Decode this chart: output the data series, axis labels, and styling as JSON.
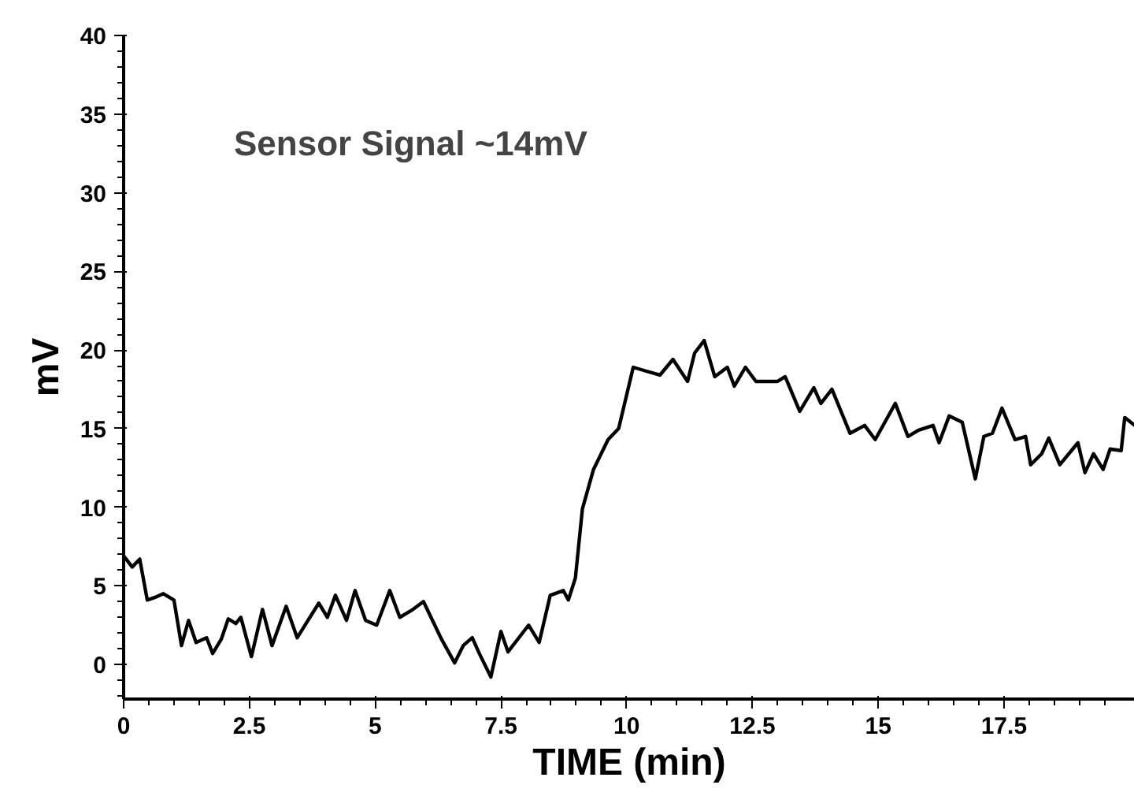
{
  "chart_data": {
    "type": "line",
    "xlabel": "TIME (min)",
    "ylabel": "mV",
    "annotations": [
      "Sensor Signal ~14mV"
    ],
    "xlim": [
      0,
      20.1
    ],
    "ylim": [
      -2.2,
      40
    ],
    "xticks": [
      0,
      2.5,
      5,
      7.5,
      10,
      12.5,
      15,
      17.5
    ],
    "yticks": [
      0,
      5,
      10,
      15,
      20,
      25,
      30,
      35,
      40
    ],
    "grid": false,
    "marker": "none",
    "line_style": "solid",
    "series": [
      {
        "color": "#000000",
        "x": [
          0,
          0.17,
          0.32,
          0.47,
          0.65,
          0.79,
          1.0,
          1.15,
          1.29,
          1.44,
          1.65,
          1.77,
          1.94,
          2.08,
          2.23,
          2.33,
          2.54,
          2.76,
          2.95,
          3.23,
          3.45,
          3.88,
          4.05,
          4.21,
          4.43,
          4.6,
          4.81,
          5.03,
          5.29,
          5.49,
          5.75,
          5.96,
          6.32,
          6.58,
          6.75,
          6.93,
          7.07,
          7.3,
          7.5,
          7.64,
          8.05,
          8.26,
          8.48,
          8.74,
          8.84,
          8.98,
          9.12,
          9.34,
          9.63,
          9.84,
          10.13,
          10.34,
          10.66,
          10.92,
          11.21,
          11.35,
          11.54,
          11.75,
          12.0,
          12.14,
          12.36,
          12.57,
          13.0,
          13.15,
          13.44,
          13.72,
          13.86,
          14.08,
          14.44,
          14.73,
          14.94,
          15.34,
          15.59,
          15.8,
          16.09,
          16.21,
          16.41,
          16.67,
          16.93,
          17.1,
          17.27,
          17.46,
          17.72,
          17.93,
          18.03,
          18.25,
          18.39,
          18.61,
          18.97,
          19.11,
          19.28,
          19.47,
          19.61,
          19.83,
          19.9,
          20.1
        ],
        "values": [
          6.9,
          6.2,
          6.7,
          4.1,
          4.3,
          4.5,
          4.1,
          1.2,
          2.8,
          1.4,
          1.7,
          0.7,
          1.6,
          2.9,
          2.6,
          3.0,
          0.5,
          3.5,
          1.2,
          3.7,
          1.7,
          3.9,
          3.0,
          4.4,
          2.8,
          4.7,
          2.8,
          2.5,
          4.7,
          3.0,
          3.5,
          4.0,
          1.6,
          0.1,
          1.2,
          1.7,
          0.7,
          -0.8,
          2.1,
          0.8,
          2.5,
          1.4,
          4.4,
          4.7,
          4.1,
          5.5,
          9.9,
          12.4,
          14.3,
          15.0,
          18.9,
          18.7,
          18.4,
          19.4,
          18.0,
          19.8,
          20.6,
          18.3,
          18.9,
          17.7,
          18.9,
          18.0,
          18.0,
          18.3,
          16.1,
          17.6,
          16.6,
          17.5,
          14.7,
          15.2,
          14.3,
          16.6,
          14.5,
          14.9,
          15.2,
          14.1,
          15.8,
          15.4,
          11.8,
          14.5,
          14.7,
          16.3,
          14.3,
          14.5,
          12.7,
          13.4,
          14.4,
          12.7,
          14.1,
          12.2,
          13.4,
          12.4,
          13.7,
          13.6,
          15.7,
          15.2
        ]
      }
    ]
  }
}
